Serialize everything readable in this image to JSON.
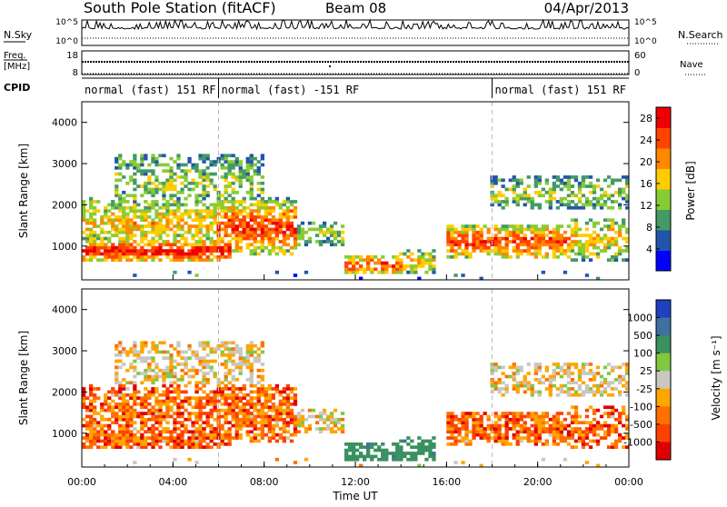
{
  "header": {
    "station": "South Pole Station (fitACF)",
    "beam": "Beam 08",
    "date": "04/Apr/2013"
  },
  "top_panels": {
    "nsky_label": "N.Sky",
    "nsearch_label": "N.Search",
    "nsky_ticks": [
      "10^5",
      "10^0"
    ],
    "nsearch_ticks": [
      "10^5",
      "10^0"
    ],
    "freq_label_line1": "Freq.",
    "freq_label_line2": "[MHz]",
    "freq_ticks": [
      "18",
      "8"
    ],
    "nave_label": "Nave",
    "nave_ticks": [
      "60",
      "0"
    ],
    "cpid_label": "CPID"
  },
  "cpid_segments": [
    {
      "text": "normal (fast) 151 RF",
      "start_hour": 0
    },
    {
      "text": "normal (fast) -151 RF",
      "start_hour": 6
    },
    {
      "text": "normal (fast) 151 RF",
      "start_hour": 18
    }
  ],
  "colors": {
    "power": [
      "#0000ff",
      "#2255aa",
      "#449966",
      "#88cc33",
      "#ffcc00",
      "#ff8800",
      "#ff4400",
      "#ee0000"
    ],
    "velocity": [
      "#2040c0",
      "#3f70a0",
      "#3a9060",
      "#80c840",
      "#c8c8c0",
      "#ffa500",
      "#ff7000",
      "#ff4000",
      "#e00000"
    ]
  },
  "chart_data": [
    {
      "type": "heatmap",
      "name": "power",
      "ylabel": "Slant Range [km]",
      "ylim": [
        180,
        4500
      ],
      "yticks": [
        1000,
        2000,
        3000,
        4000
      ],
      "xlim": [
        0,
        24
      ],
      "colorbar_label": "Power [dB]",
      "colorbar_ticks": [
        4,
        8,
        12,
        16,
        20,
        24,
        28
      ],
      "colorbar_range": [
        0,
        30
      ]
    },
    {
      "type": "heatmap",
      "name": "velocity",
      "ylabel": "Slant Range [km]",
      "ylim": [
        180,
        4500
      ],
      "yticks": [
        1000,
        2000,
        3000,
        4000
      ],
      "xlim": [
        0,
        24
      ],
      "xlabel": "Time UT",
      "xticks": [
        "00:00",
        "04:00",
        "08:00",
        "12:00",
        "16:00",
        "20:00",
        "00:00"
      ],
      "colorbar_label": "Velocity [m s⁻¹]",
      "colorbar_ticks": [
        "1000",
        "500",
        "100",
        "25",
        "-25",
        "-100",
        "-500",
        "-1000"
      ]
    }
  ]
}
